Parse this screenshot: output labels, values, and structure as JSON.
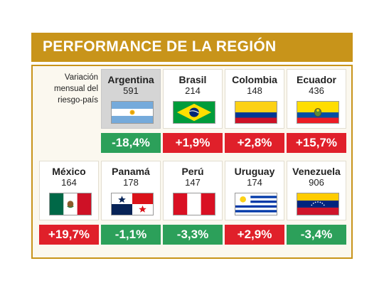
{
  "header": {
    "title": "PERFORMANCE DE LA REGIÓN"
  },
  "side_label": [
    "Variación",
    "mensual del",
    "riesgo-país"
  ],
  "colors": {
    "gold": "#c8941a",
    "positive": "#e0202a",
    "negative": "#2ca05a",
    "highlight": "#d5d5d5"
  },
  "chart_data": {
    "type": "table",
    "title": "PERFORMANCE DE LA REGIÓN",
    "description_label": "Variación mensual del riesgo-país",
    "rows": [
      {
        "country": "Argentina",
        "riesgo_pais": 591,
        "variacion_pct": -18.4,
        "label": "-18,4%",
        "highlight": true,
        "flag": "argentina-flag"
      },
      {
        "country": "Brasil",
        "riesgo_pais": 214,
        "variacion_pct": 1.9,
        "label": "+1,9%",
        "highlight": false,
        "flag": "brasil-flag"
      },
      {
        "country": "Colombia",
        "riesgo_pais": 148,
        "variacion_pct": 2.8,
        "label": "+2,8%",
        "highlight": false,
        "flag": "colombia-flag"
      },
      {
        "country": "Ecuador",
        "riesgo_pais": 436,
        "variacion_pct": 15.7,
        "label": "+15,7%",
        "highlight": false,
        "flag": "ecuador-flag"
      },
      {
        "country": "México",
        "riesgo_pais": 164,
        "variacion_pct": 19.7,
        "label": "+19,7%",
        "highlight": false,
        "flag": "mexico-flag"
      },
      {
        "country": "Panamá",
        "riesgo_pais": 178,
        "variacion_pct": -1.1,
        "label": "-1,1%",
        "highlight": false,
        "flag": "panama-flag"
      },
      {
        "country": "Perú",
        "riesgo_pais": 147,
        "variacion_pct": -3.3,
        "label": "-3,3%",
        "highlight": false,
        "flag": "peru-flag"
      },
      {
        "country": "Uruguay",
        "riesgo_pais": 174,
        "variacion_pct": 2.9,
        "label": "+2,9%",
        "highlight": false,
        "flag": "uruguay-flag"
      },
      {
        "country": "Venezuela",
        "riesgo_pais": 906,
        "variacion_pct": -3.4,
        "label": "-3,4%",
        "highlight": false,
        "flag": "venezuela-flag"
      }
    ]
  }
}
